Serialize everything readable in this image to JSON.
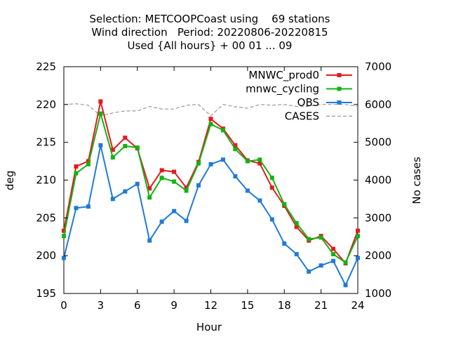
{
  "chart_data": {
    "type": "line",
    "title_lines": [
      "Selection: METCOOPCoast using    69 stations",
      "Wind direction   Period: 20220806-20220815",
      "Used {All hours} + 00 01 ... 09"
    ],
    "xlabel": "Hour",
    "ylabel": "deg",
    "y2label": "No cases",
    "xlim": [
      0,
      24
    ],
    "ylim": [
      195,
      225
    ],
    "y2lim": [
      1000,
      7000
    ],
    "xticks": [
      0,
      3,
      6,
      9,
      12,
      15,
      18,
      21,
      24
    ],
    "yticks": [
      195,
      200,
      205,
      210,
      215,
      220,
      225
    ],
    "y2ticks": [
      1000,
      2000,
      3000,
      4000,
      5000,
      6000,
      7000
    ],
    "legend_position": "top-right",
    "grid": false,
    "x": [
      0,
      1,
      2,
      3,
      4,
      5,
      6,
      7,
      8,
      9,
      10,
      11,
      12,
      13,
      14,
      15,
      16,
      17,
      18,
      19,
      20,
      21,
      22,
      23,
      24
    ],
    "series": [
      {
        "name": "MNWC_prod0",
        "color": "#e41a1c",
        "axis": "y",
        "values": [
          203.3,
          211.8,
          212.5,
          220.4,
          214.0,
          215.6,
          214.2,
          208.9,
          211.3,
          211.1,
          209.0,
          212.4,
          218.1,
          216.8,
          214.6,
          212.6,
          212.2,
          209.0,
          206.6,
          203.8,
          202.0,
          202.6,
          200.9,
          199.0,
          203.3
        ]
      },
      {
        "name": "mnwc_cycling",
        "color": "#12b312",
        "axis": "y",
        "values": [
          202.6,
          210.9,
          212.1,
          218.8,
          213.0,
          214.5,
          214.3,
          207.7,
          210.3,
          209.8,
          208.6,
          212.2,
          217.4,
          216.6,
          214.1,
          212.5,
          212.7,
          210.3,
          206.8,
          204.3,
          202.2,
          202.4,
          200.2,
          199.1,
          202.6
        ]
      },
      {
        "name": "OBS",
        "color": "#1f7bd6",
        "axis": "y",
        "values": [
          199.7,
          206.3,
          206.5,
          214.6,
          207.5,
          208.5,
          209.5,
          202.0,
          204.5,
          205.9,
          204.6,
          209.3,
          212.1,
          212.7,
          210.5,
          208.6,
          207.3,
          204.8,
          201.6,
          200.2,
          197.9,
          198.7,
          199.3,
          196.1,
          199.7
        ]
      },
      {
        "name": "CASES",
        "color": "#999999",
        "axis": "y2",
        "dashed": true,
        "values": [
          6000,
          6020,
          5980,
          5700,
          5780,
          5830,
          5830,
          5950,
          5880,
          5880,
          5980,
          6000,
          5700,
          6000,
          5940,
          5900,
          6000,
          5980,
          6000,
          5950,
          5950,
          6000,
          6000,
          6000,
          5950
        ]
      }
    ]
  }
}
